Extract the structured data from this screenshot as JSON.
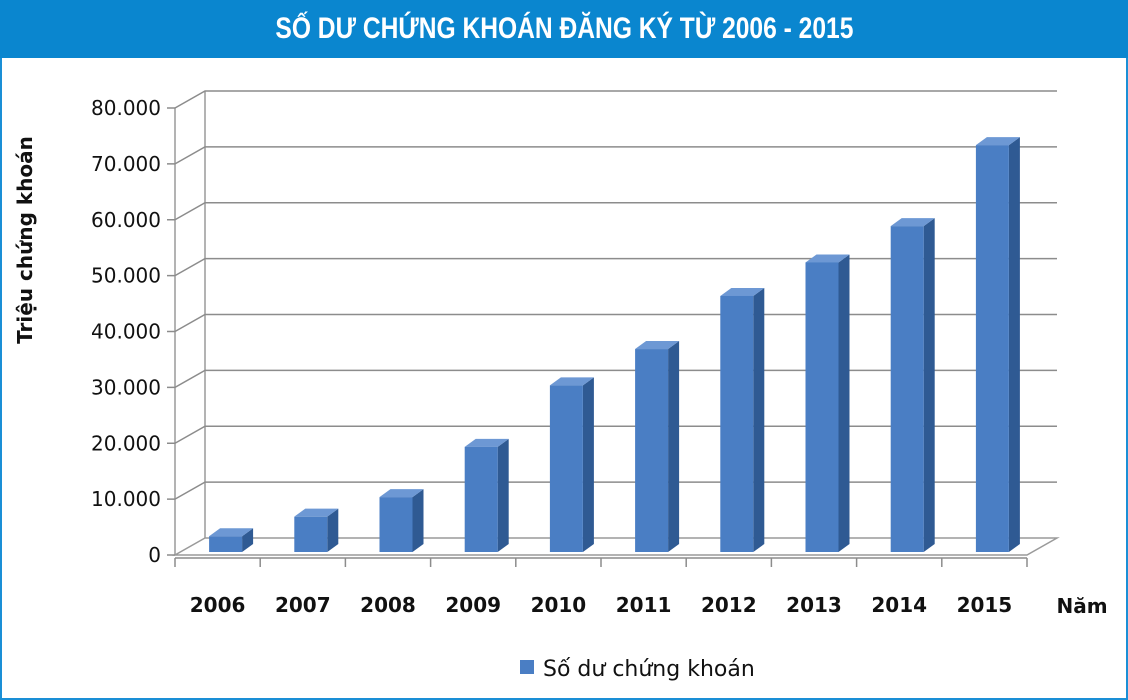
{
  "chart_data": {
    "type": "bar",
    "title": "SỐ DƯ CHỨNG KHOÁN ĐĂNG KÝ TỪ 2006 - 2015",
    "xlabel": "Năm",
    "ylabel": "Triệu chứng khoán",
    "categories": [
      "2006",
      "2007",
      "2008",
      "2009",
      "2010",
      "2011",
      "2012",
      "2013",
      "2014",
      "2015"
    ],
    "series": [
      {
        "name": "Số dư chứng khoán",
        "values": [
          3000,
          6500,
          10000,
          19000,
          30000,
          36500,
          46000,
          52000,
          58500,
          73000
        ],
        "color": "#4a7ec4"
      }
    ],
    "ylim": [
      0,
      80000
    ],
    "yticks": [
      0,
      10000,
      20000,
      30000,
      40000,
      50000,
      60000,
      70000,
      80000
    ],
    "ytick_labels": [
      "0",
      "10.000",
      "20.000",
      "30.000",
      "40.000",
      "50.000",
      "60.000",
      "70.000",
      "80.000"
    ],
    "grid": true,
    "legend_position": "bottom-center",
    "style": "3d"
  }
}
